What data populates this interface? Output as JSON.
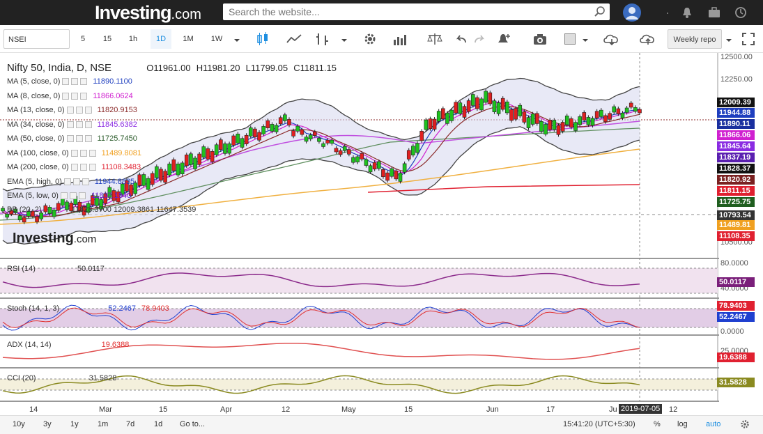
{
  "header": {
    "logo_text": "Investing",
    "logo_suffix": ".com",
    "search_placeholder": "Search the website..."
  },
  "toolbar": {
    "symbol": "NSEI",
    "intervals": [
      "5",
      "15",
      "1h",
      "1D",
      "1M",
      "1W"
    ],
    "active_interval": "1D",
    "template_label": "Weekly repo"
  },
  "chart": {
    "title": "Nifty 50, India, D, NSE",
    "open": "O11961.00",
    "high": "H11981.20",
    "low": "L11799.05",
    "close": "C11811.15",
    "watermark": "Investing",
    "watermark_suffix": ".com",
    "indicators": [
      {
        "label": "MA (5, close, 0)",
        "value": "11890.1100",
        "color": "#1f3fbf"
      },
      {
        "label": "MA (8, close, 0)",
        "value": "11866.0624",
        "color": "#d020d0"
      },
      {
        "label": "MA (13, close, 0)",
        "value": "11820.9153",
        "color": "#8b2a2a"
      },
      {
        "label": "MA (34, close, 0)",
        "value": "11845.6382",
        "color": "#8a2be2"
      },
      {
        "label": "MA (50, close, 0)",
        "value": "11725.7450",
        "color": "#2e5e2e"
      },
      {
        "label": "MA (100, close, 0)",
        "value": "11489.8081",
        "color": "#f0a020"
      },
      {
        "label": "MA (200, close, 0)",
        "value": "11108.3483",
        "color": "#e02030"
      },
      {
        "label": "EMA (5, high, 0)",
        "value": "11944.8835",
        "color": "#1f3fbf"
      },
      {
        "label": "EMA (5, low, 0)",
        "value": "11837.1940",
        "color": "#6a1fd0"
      }
    ],
    "bb_label": "BB (20, 2)",
    "bb_values": "11828.3700  12009.3861  11647.3539",
    "price_axis": [
      "12500.00",
      "12250.00",
      "10500.00"
    ],
    "price_tags": [
      {
        "value": "12009.39",
        "bg": "#111111"
      },
      {
        "value": "11944.88",
        "bg": "#1f3fbf"
      },
      {
        "value": "11890.11",
        "bg": "#1a2f9f"
      },
      {
        "value": "11866.06",
        "bg": "#d020d0"
      },
      {
        "value": "11845.64",
        "bg": "#8a2be2"
      },
      {
        "value": "11837.19",
        "bg": "#5a1fb0"
      },
      {
        "value": "11828.37",
        "bg": "#111111"
      },
      {
        "value": "11820.92",
        "bg": "#7a2020"
      },
      {
        "value": "11811.15",
        "bg": "#e02030"
      },
      {
        "value": "11725.75",
        "bg": "#1f5e1f"
      },
      {
        "value": "10793.54",
        "bg": "#333333"
      },
      {
        "value": "11489.81",
        "bg": "#f0a020"
      },
      {
        "value": "11108.35",
        "bg": "#e02030"
      }
    ],
    "x_labels": [
      "14",
      "Mar",
      "15",
      "Apr",
      "12",
      "May",
      "15",
      "Jun",
      "17",
      "Ju",
      "12"
    ],
    "cursor_date": "2019-07-05"
  },
  "panes": {
    "rsi": {
      "label": "RSI (14)",
      "value": "50.0117",
      "axis": [
        "80.0000",
        "40.0000"
      ],
      "tag": "50.0117"
    },
    "stoch": {
      "label": "Stoch (14, 1, 3)",
      "v1": "52.2467",
      "v2": "78.9403",
      "tag1": "78.9403",
      "tag2": "52.2467",
      "axis": [
        "0.0000"
      ]
    },
    "adx": {
      "label": "ADX (14, 14)",
      "value": "19.6388",
      "tag": "19.6388",
      "axis": [
        "25.0000"
      ]
    },
    "cci": {
      "label": "CCI (20)",
      "value": "31.5828",
      "tag": "31.5828"
    }
  },
  "footer": {
    "ranges": [
      "10y",
      "3y",
      "1y",
      "1m",
      "7d",
      "1d",
      "Go to..."
    ],
    "time": "15:41:20 (UTC+5:30)",
    "options": [
      "%",
      "log",
      "auto"
    ]
  }
}
